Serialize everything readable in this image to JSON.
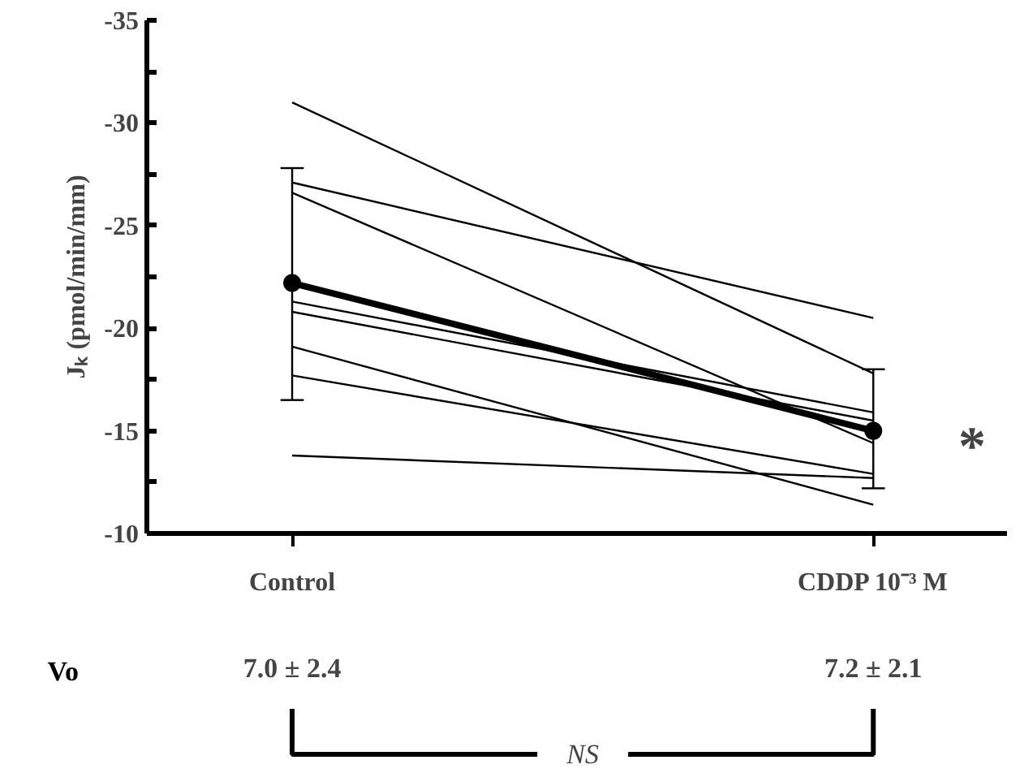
{
  "chart_data": {
    "type": "line",
    "ylabel": "Jₖ (pmol/min/mm)",
    "categories": [
      "Control",
      "CDDP 10⁻³ M"
    ],
    "ylim": [
      -10,
      -35
    ],
    "yticks": [
      -35,
      {
        "value": -32.5,
        "label": null
      },
      -30,
      {
        "value": -27.5,
        "label": null
      },
      -25,
      {
        "value": -22.5,
        "label": null
      },
      -20,
      {
        "value": -17.5,
        "label": null
      },
      -15,
      {
        "value": -12.5,
        "label": null
      },
      -10
    ],
    "grid": false,
    "line_style": "solid",
    "series": [
      {
        "color": "#000000",
        "marker": "none",
        "values": [
          -31.0,
          -17.8
        ]
      },
      {
        "color": "#000000",
        "marker": "none",
        "values": [
          -27.1,
          -20.5
        ]
      },
      {
        "color": "#000000",
        "marker": "none",
        "values": [
          -26.6,
          -14.4
        ]
      },
      {
        "color": "#000000",
        "marker": "none",
        "values": [
          -21.3,
          -15.9
        ]
      },
      {
        "color": "#000000",
        "marker": "none",
        "values": [
          -20.8,
          -15.5
        ]
      },
      {
        "color": "#000000",
        "marker": "none",
        "values": [
          -19.1,
          -11.4
        ]
      },
      {
        "color": "#000000",
        "marker": "none",
        "values": [
          -17.7,
          -12.9
        ]
      },
      {
        "color": "#000000",
        "marker": "none",
        "values": [
          -13.8,
          -12.7
        ]
      },
      {
        "color": "#000000",
        "marker": "circle",
        "values": [
          -22.2,
          -15.0
        ],
        "errors": [
          [
            -27.8,
            -16.5
          ],
          [
            -18.0,
            -12.2
          ]
        ]
      }
    ],
    "annotations": [
      {
        "text": "*",
        "x": "CDDP 10⁻³ M",
        "y": -15.0
      },
      "Vo",
      "7.0 ± 2.4",
      "7.2 ± 2.1",
      "NS"
    ]
  }
}
